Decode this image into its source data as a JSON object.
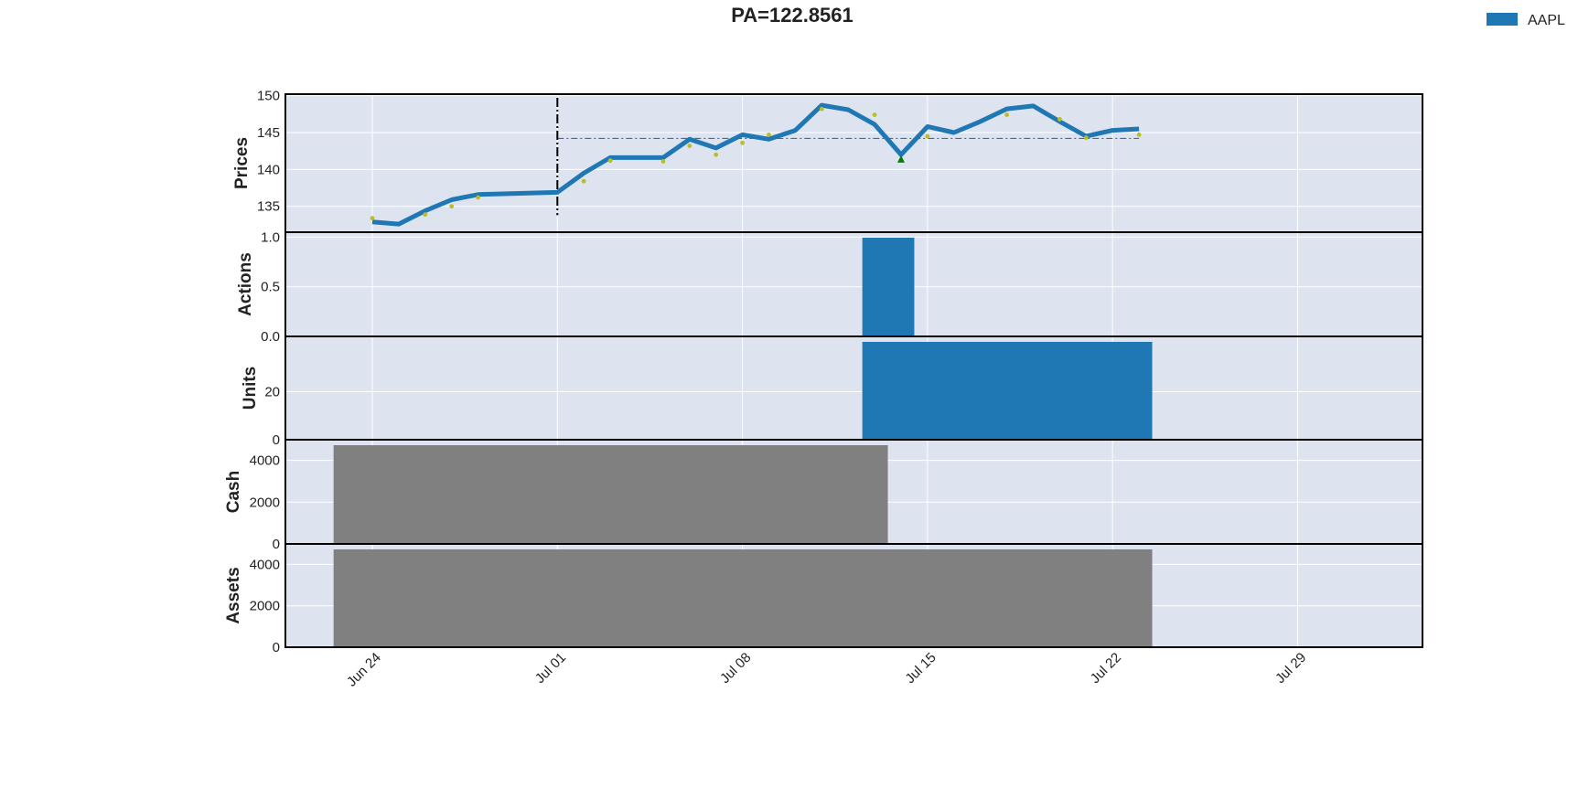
{
  "chart_data": {
    "type": "line",
    "title": "PA=122.8561",
    "legend": {
      "entries": [
        "AAPL"
      ],
      "placement": "top-right",
      "color": "#1f77b4"
    },
    "colors": {
      "background": "#dde3ef",
      "grid": "#ffffff",
      "series": "#1f77b4",
      "gray_bars": "#808080",
      "signal": "#bcbd22",
      "marker": "#008000"
    },
    "x_dates": [
      "2024-06-24",
      "2024-06-25",
      "2024-06-26",
      "2024-06-27",
      "2024-06-28",
      "2024-07-01",
      "2024-07-02",
      "2024-07-03",
      "2024-07-05",
      "2024-07-06",
      "2024-07-07",
      "2024-07-08",
      "2024-07-09",
      "2024-07-10",
      "2024-07-11",
      "2024-07-12",
      "2024-07-13",
      "2024-07-14",
      "2024-07-15",
      "2024-07-16",
      "2024-07-17",
      "2024-07-18",
      "2024-07-19",
      "2024-07-20",
      "2024-07-21",
      "2024-07-22",
      "2024-07-23",
      "2024-07-24",
      "2024-07-25",
      "2024-07-26",
      "2024-07-27",
      "2024-07-28",
      "2024-07-29",
      "2024-07-30"
    ],
    "x_ticks": [
      "Jun 24",
      "Jul 01",
      "Jul 08",
      "Jul 15",
      "Jul 22",
      "Jul 29"
    ],
    "panels": [
      {
        "ylabel": "Prices",
        "ylim": [
          131.5,
          150.2
        ],
        "yticks": [
          "135",
          "140",
          "145",
          "150"
        ],
        "series": [
          {
            "name": "AAPL",
            "points": [
              [
                "2024-06-24",
                132.9
              ],
              [
                "2024-06-25",
                132.6
              ],
              [
                "2024-06-26",
                134.4
              ],
              [
                "2024-06-27",
                135.9
              ],
              [
                "2024-06-28",
                136.6
              ],
              [
                "2024-07-01",
                136.9
              ],
              [
                "2024-07-02",
                139.5
              ],
              [
                "2024-07-03",
                141.6
              ],
              [
                "2024-07-05",
                141.6
              ],
              [
                "2024-07-06",
                144.1
              ],
              [
                "2024-07-07",
                142.9
              ],
              [
                "2024-07-08",
                144.7
              ],
              [
                "2024-07-09",
                144.1
              ],
              [
                "2024-07-10",
                145.3
              ],
              [
                "2024-07-11",
                148.7
              ],
              [
                "2024-07-12",
                148.1
              ],
              [
                "2024-07-13",
                146.1
              ],
              [
                "2024-07-14",
                142.0
              ],
              [
                "2024-07-15",
                145.8
              ],
              [
                "2024-07-16",
                145.0
              ],
              [
                "2024-07-17",
                146.5
              ],
              [
                "2024-07-18",
                148.2
              ],
              [
                "2024-07-19",
                148.6
              ],
              [
                "2024-07-20",
                146.5
              ],
              [
                "2024-07-21",
                144.5
              ],
              [
                "2024-07-22",
                145.3
              ],
              [
                "2024-07-23",
                145.5
              ]
            ]
          },
          {
            "name": "signal",
            "points": [
              [
                "2024-06-24",
                133.4
              ],
              [
                "2024-06-26",
                133.9
              ],
              [
                "2024-06-27",
                135.0
              ],
              [
                "2024-06-28",
                136.2
              ],
              [
                "2024-07-02",
                138.4
              ],
              [
                "2024-07-03",
                141.2
              ],
              [
                "2024-07-05",
                141.1
              ],
              [
                "2024-07-06",
                143.2
              ],
              [
                "2024-07-07",
                142.0
              ],
              [
                "2024-07-08",
                143.6
              ],
              [
                "2024-07-09",
                144.7
              ],
              [
                "2024-07-11",
                148.2
              ],
              [
                "2024-07-13",
                147.4
              ],
              [
                "2024-07-15",
                144.5
              ],
              [
                "2024-07-18",
                147.4
              ],
              [
                "2024-07-20",
                146.8
              ],
              [
                "2024-07-21",
                144.3
              ],
              [
                "2024-07-23",
                144.7
              ]
            ]
          }
        ],
        "markers": [
          {
            "x": "2024-07-14",
            "y": 141.3,
            "shape": "triangle-up"
          }
        ],
        "hline": {
          "y": 144.2,
          "from": "2024-07-01",
          "to": "2024-07-23"
        },
        "vline": {
          "x": "2024-07-01",
          "from": 133.8,
          "to": 149.7
        }
      },
      {
        "ylabel": "Actions",
        "ylim": [
          0,
          1.05
        ],
        "yticks": [
          "0.0",
          "0.5",
          "1.0"
        ],
        "bars": [
          {
            "from": "2024-07-13",
            "to": "2024-07-14",
            "value": 1.0
          }
        ]
      },
      {
        "ylabel": "Units",
        "ylim": [
          0,
          43
        ],
        "yticks": [
          "0",
          "20"
        ],
        "bars": [
          {
            "from": "2024-07-13",
            "to": "2024-07-23",
            "value": 41.5
          }
        ]
      },
      {
        "ylabel": "Cash",
        "ylim": [
          0,
          4990
        ],
        "yticks": [
          "0",
          "2000",
          "4000"
        ],
        "bars": [
          {
            "from": "2024-06-23",
            "to": "2024-07-13",
            "value": 5000
          }
        ]
      },
      {
        "ylabel": "Assets",
        "ylim": [
          0,
          4990
        ],
        "yticks": [
          "0",
          "2000",
          "4000"
        ],
        "bars": [
          {
            "from": "2024-06-23",
            "to": "2024-07-23",
            "value": 5000
          }
        ]
      }
    ]
  }
}
